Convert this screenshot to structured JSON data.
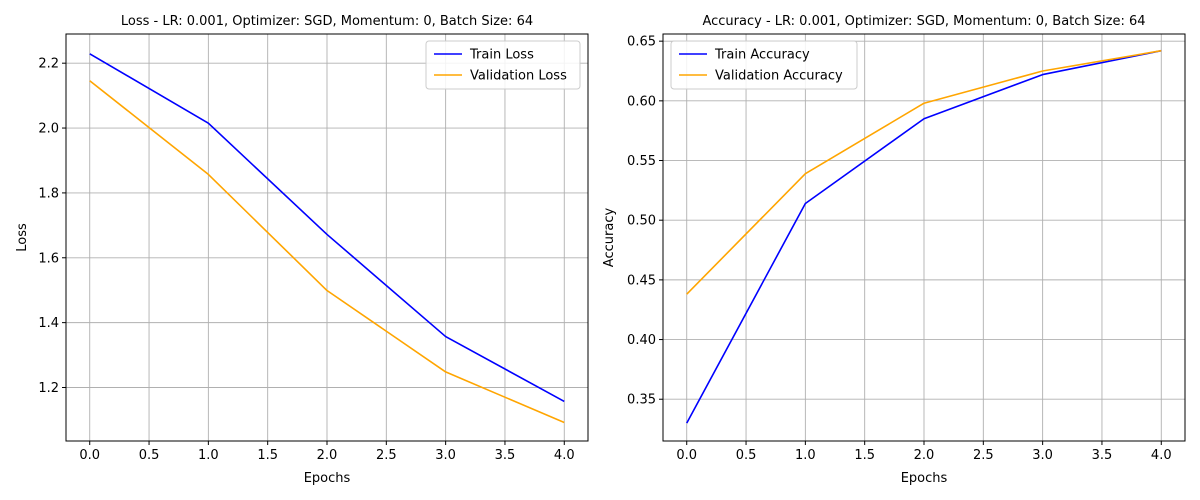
{
  "chart_data": [
    {
      "type": "line",
      "title": "Loss - LR: 0.001, Optimizer: SGD, Momentum: 0, Batch Size: 64",
      "xlabel": "Epochs",
      "ylabel": "Loss",
      "xlim": [
        -0.2,
        4.2
      ],
      "ylim": [
        1.035,
        2.29
      ],
      "xticks": [
        0.0,
        0.5,
        1.0,
        1.5,
        2.0,
        2.5,
        3.0,
        3.5,
        4.0
      ],
      "xtick_labels": [
        "0.0",
        "0.5",
        "1.0",
        "1.5",
        "2.0",
        "2.5",
        "3.0",
        "3.5",
        "4.0"
      ],
      "yticks": [
        1.2,
        1.4,
        1.6,
        1.8,
        2.0,
        2.2
      ],
      "ytick_labels": [
        "1.2",
        "1.4",
        "1.6",
        "1.8",
        "2.0",
        "2.2"
      ],
      "grid": true,
      "legend_position": "top-right",
      "x": [
        0,
        1,
        2,
        3,
        4
      ],
      "series": [
        {
          "name": "Train Loss",
          "color": "#0000ff",
          "values": [
            2.229,
            2.015,
            1.672,
            1.357,
            1.157
          ]
        },
        {
          "name": "Validation Loss",
          "color": "#ffa500",
          "values": [
            2.146,
            1.857,
            1.499,
            1.248,
            1.092
          ]
        }
      ]
    },
    {
      "type": "line",
      "title": "Accuracy - LR: 0.001, Optimizer: SGD, Momentum: 0, Batch Size: 64",
      "xlabel": "Epochs",
      "ylabel": "Accuracy",
      "xlim": [
        -0.2,
        4.2
      ],
      "ylim": [
        0.315,
        0.656
      ],
      "xticks": [
        0.0,
        0.5,
        1.0,
        1.5,
        2.0,
        2.5,
        3.0,
        3.5,
        4.0
      ],
      "xtick_labels": [
        "0.0",
        "0.5",
        "1.0",
        "1.5",
        "2.0",
        "2.5",
        "3.0",
        "3.5",
        "4.0"
      ],
      "yticks": [
        0.35,
        0.4,
        0.45,
        0.5,
        0.55,
        0.6,
        0.65
      ],
      "ytick_labels": [
        "0.35",
        "0.40",
        "0.45",
        "0.50",
        "0.55",
        "0.60",
        "0.65"
      ],
      "grid": true,
      "legend_position": "top-left",
      "x": [
        0,
        1,
        2,
        3,
        4
      ],
      "series": [
        {
          "name": "Train Accuracy",
          "color": "#0000ff",
          "values": [
            0.33,
            0.514,
            0.585,
            0.622,
            0.642
          ]
        },
        {
          "name": "Validation Accuracy",
          "color": "#ffa500",
          "values": [
            0.438,
            0.539,
            0.598,
            0.625,
            0.642
          ]
        }
      ]
    }
  ]
}
